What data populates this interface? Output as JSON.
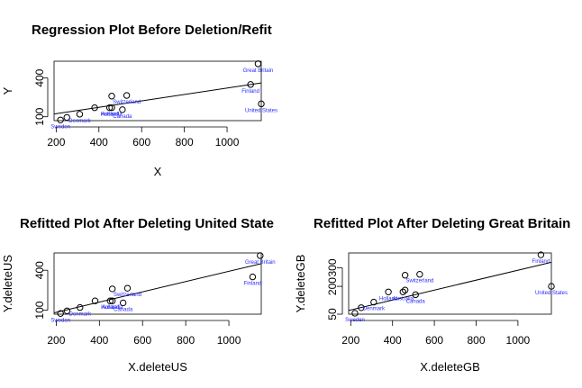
{
  "chart_data": [
    {
      "type": "scatter",
      "title": "Regression Plot Before Deletion/Refit",
      "xlabel": "X",
      "ylabel": "Y",
      "xlim": [
        190,
        1160
      ],
      "ylim": [
        70,
        530
      ],
      "xticks": [
        200,
        400,
        600,
        800,
        1000
      ],
      "yticks": [
        100,
        400
      ],
      "points": [
        {
          "x": 220,
          "y": 75,
          "label": "Sweden"
        },
        {
          "x": 250,
          "y": 95,
          "label": ""
        },
        {
          "x": 310,
          "y": 120,
          "label": "Denmark"
        },
        {
          "x": 380,
          "y": 170,
          "label": ""
        },
        {
          "x": 450,
          "y": 170,
          "label": "Holland"
        },
        {
          "x": 460,
          "y": 260,
          "label": ""
        },
        {
          "x": 460,
          "y": 170,
          "label": "Australia"
        },
        {
          "x": 510,
          "y": 155,
          "label": "Canada"
        },
        {
          "x": 530,
          "y": 265,
          "label": "Switzerland"
        },
        {
          "x": 1110,
          "y": 350,
          "label": "Finland"
        },
        {
          "x": 1145,
          "y": 510,
          "label": "Great Britain"
        },
        {
          "x": 1160,
          "y": 200,
          "label": "United States"
        }
      ],
      "fit_line": {
        "x": [
          190,
          1160
        ],
        "y": [
          121,
          362
        ]
      }
    },
    {
      "type": "scatter",
      "title": "Refitted Plot After Deleting United State",
      "xlabel": "X.deleteUS",
      "ylabel": "Y.deleteUS",
      "xlim": [
        190,
        1150
      ],
      "ylim": [
        70,
        530
      ],
      "xticks": [
        200,
        400,
        600,
        800,
        1000
      ],
      "yticks": [
        100,
        400
      ],
      "points": [
        {
          "x": 220,
          "y": 75,
          "label": "Sweden"
        },
        {
          "x": 250,
          "y": 95,
          "label": ""
        },
        {
          "x": 310,
          "y": 120,
          "label": "Denmark"
        },
        {
          "x": 380,
          "y": 170,
          "label": ""
        },
        {
          "x": 450,
          "y": 170,
          "label": "Holland"
        },
        {
          "x": 460,
          "y": 260,
          "label": ""
        },
        {
          "x": 460,
          "y": 170,
          "label": "Australia"
        },
        {
          "x": 510,
          "y": 155,
          "label": "Canada"
        },
        {
          "x": 530,
          "y": 265,
          "label": "Switzerland"
        },
        {
          "x": 1110,
          "y": 350,
          "label": "Finland"
        },
        {
          "x": 1145,
          "y": 510,
          "label": "Great Britain"
        }
      ],
      "fit_line": {
        "x": [
          190,
          1150
        ],
        "y": [
          80,
          450
        ]
      }
    },
    {
      "type": "scatter",
      "title": "Refitted Plot After Deleting Great Britain",
      "xlabel": "X.deleteGB",
      "ylabel": "Y.deleteGB",
      "xlim": [
        190,
        1160
      ],
      "ylim": [
        50,
        380
      ],
      "xticks": [
        200,
        400,
        600,
        800,
        1000
      ],
      "yticks": [
        50,
        200,
        300
      ],
      "points": [
        {
          "x": 220,
          "y": 55,
          "label": "Sweden"
        },
        {
          "x": 250,
          "y": 85,
          "label": ""
        },
        {
          "x": 310,
          "y": 115,
          "label": "Denmark"
        },
        {
          "x": 380,
          "y": 170,
          "label": "Holland"
        },
        {
          "x": 450,
          "y": 170,
          "label": "Australia"
        },
        {
          "x": 460,
          "y": 260,
          "label": ""
        },
        {
          "x": 460,
          "y": 180,
          "label": ""
        },
        {
          "x": 510,
          "y": 155,
          "label": "Canada"
        },
        {
          "x": 530,
          "y": 265,
          "label": "Switzerland"
        },
        {
          "x": 1110,
          "y": 370,
          "label": "Finland"
        },
        {
          "x": 1160,
          "y": 200,
          "label": "United States"
        }
      ],
      "fit_line": {
        "x": [
          190,
          1160
        ],
        "y": [
          70,
          330
        ]
      }
    }
  ]
}
